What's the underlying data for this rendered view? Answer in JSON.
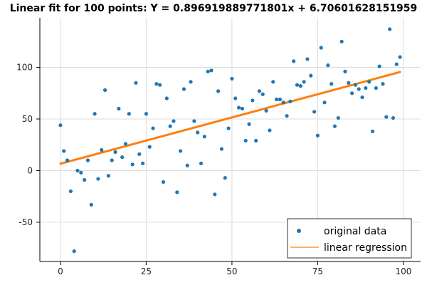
{
  "chart_data": {
    "type": "scatter",
    "title": "Linear fit for 100 points: Y = 0.896919889771801x + 6.70601628151959",
    "xlabel": "",
    "ylabel": "",
    "xlim": [
      -6,
      105
    ],
    "ylim": [
      -88,
      148
    ],
    "x_ticks": [
      0,
      25,
      50,
      75,
      100
    ],
    "y_ticks": [
      -50,
      0,
      50,
      100
    ],
    "x_tick_labels": [
      "0",
      "25",
      "50",
      "75",
      "100"
    ],
    "y_tick_labels": [
      "-50",
      "0",
      "50",
      "100"
    ],
    "grid": true,
    "legend_position": "bottom-right",
    "colors": {
      "points": "#1f77b4",
      "line": "#ff7f0e",
      "grid": "#dcdcdc",
      "axis": "#000000"
    },
    "series": [
      {
        "name": "original data",
        "kind": "scatter",
        "x": [
          0,
          1,
          2,
          3,
          4,
          5,
          6,
          7,
          8,
          9,
          10,
          11,
          12,
          13,
          14,
          15,
          16,
          17,
          18,
          19,
          20,
          21,
          22,
          23,
          24,
          25,
          26,
          27,
          28,
          29,
          30,
          31,
          32,
          33,
          34,
          35,
          36,
          37,
          38,
          39,
          40,
          41,
          42,
          43,
          44,
          45,
          46,
          47,
          48,
          49,
          50,
          51,
          52,
          53,
          54,
          55,
          56,
          57,
          58,
          59,
          60,
          61,
          62,
          63,
          64,
          65,
          66,
          67,
          68,
          69,
          70,
          71,
          72,
          73,
          74,
          75,
          76,
          77,
          78,
          79,
          80,
          81,
          82,
          83,
          84,
          85,
          86,
          87,
          88,
          89,
          90,
          91,
          92,
          93,
          94,
          95,
          96,
          97,
          98,
          99
        ],
        "y": [
          44,
          19,
          10,
          -20,
          -78,
          0,
          -2,
          -9,
          10,
          -33,
          55,
          -8,
          20,
          78,
          -5,
          10,
          18,
          60,
          13,
          26,
          55,
          6,
          85,
          16,
          7,
          55,
          23,
          41,
          84,
          83,
          -11,
          70,
          43,
          48,
          -21,
          19,
          79,
          5,
          86,
          48,
          37,
          7,
          33,
          96,
          97,
          -23,
          77,
          21,
          -7,
          41,
          89,
          70,
          61,
          60,
          29,
          45,
          68,
          29,
          77,
          74,
          58,
          39,
          86,
          69,
          69,
          66,
          53,
          67,
          106,
          83,
          82,
          86,
          108,
          92,
          57,
          34,
          119,
          66,
          102,
          84,
          43,
          51,
          125,
          96,
          85,
          75,
          83,
          79,
          71,
          80,
          86,
          38,
          80,
          101,
          84,
          52,
          137,
          51,
          103,
          110
        ]
      },
      {
        "name": "linear regression",
        "kind": "line",
        "slope": 0.896919889771801,
        "intercept": 6.70601628151959,
        "x_range": [
          0,
          99
        ]
      }
    ]
  }
}
